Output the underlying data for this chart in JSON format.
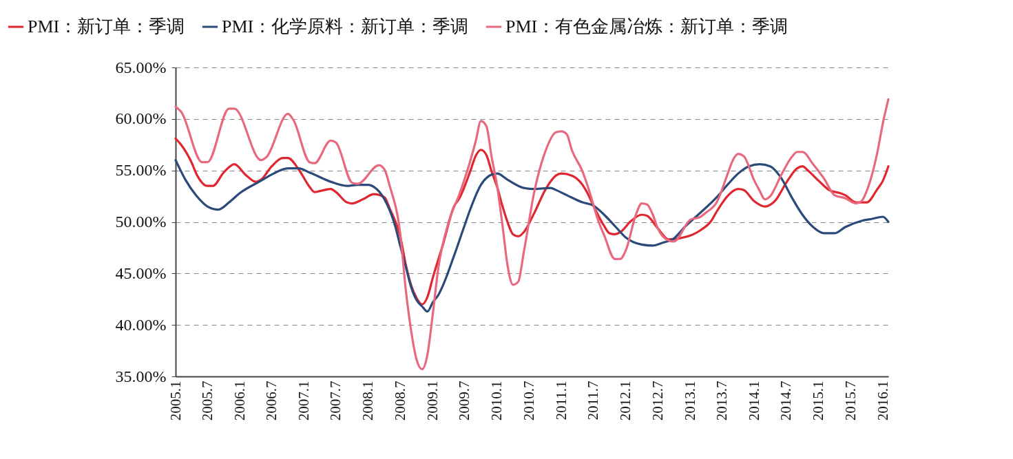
{
  "chart_data": {
    "type": "line",
    "legend": "top",
    "grid": "y",
    "line_style": "solid",
    "xlim": [
      "2005-01",
      "2016-02"
    ],
    "xticks": [
      {
        "value": "2005-01",
        "label": "2005.1"
      },
      {
        "value": "2005-07",
        "label": "2005.7"
      },
      {
        "value": "2006-01",
        "label": "2006.1"
      },
      {
        "value": "2006-07",
        "label": "2006.7"
      },
      {
        "value": "2007-01",
        "label": "2007.1"
      },
      {
        "value": "2007-07",
        "label": "2007.7"
      },
      {
        "value": "2008-01",
        "label": "2008.1"
      },
      {
        "value": "2008-07",
        "label": "2008.7"
      },
      {
        "value": "2009-01",
        "label": "2009.1"
      },
      {
        "value": "2009-07",
        "label": "2009.7"
      },
      {
        "value": "2010-01",
        "label": "2010.1"
      },
      {
        "value": "2010-07",
        "label": "2010.7"
      },
      {
        "value": "2011-01",
        "label": "2011.1"
      },
      {
        "value": "2011-07",
        "label": "2011.7"
      },
      {
        "value": "2012-01",
        "label": "2012.1"
      },
      {
        "value": "2012-07",
        "label": "2012.7"
      },
      {
        "value": "2013-01",
        "label": "2013.1"
      },
      {
        "value": "2013-07",
        "label": "2013.7"
      },
      {
        "value": "2014-01",
        "label": "2014.1"
      },
      {
        "value": "2014-07",
        "label": "2014.7"
      },
      {
        "value": "2015-01",
        "label": "2015.1"
      },
      {
        "value": "2015-07",
        "label": "2015.7"
      },
      {
        "value": "2016-01",
        "label": "2016.1"
      }
    ],
    "ylim": [
      35,
      65
    ],
    "yticks": [
      {
        "value": 35,
        "label": "35.00%"
      },
      {
        "value": 40,
        "label": "40.00%"
      },
      {
        "value": 45,
        "label": "45.00%"
      },
      {
        "value": 50,
        "label": "50.00%"
      },
      {
        "value": 55,
        "label": "55.00%"
      },
      {
        "value": 60,
        "label": "60.00%"
      },
      {
        "value": 65,
        "label": "65.00%"
      }
    ],
    "series": [
      {
        "name": "PMI：新订单：季调",
        "color": "#e0262e",
        "x": [
          "2005-01",
          "2005-02",
          "2005-04",
          "2005-05",
          "2005-07",
          "2005-08",
          "2005-10",
          "2005-12",
          "2006-02",
          "2006-04",
          "2006-05",
          "2006-07",
          "2006-09",
          "2006-10",
          "2006-12",
          "2007-02",
          "2007-03",
          "2007-04",
          "2007-06",
          "2007-07",
          "2007-09",
          "2007-10",
          "2007-12",
          "2008-02",
          "2008-04",
          "2008-05",
          "2008-07",
          "2008-08",
          "2008-09",
          "2008-10",
          "2008-11",
          "2008-12",
          "2009-01",
          "2009-03",
          "2009-05",
          "2009-06",
          "2009-08",
          "2009-09",
          "2009-10",
          "2009-11",
          "2009-12",
          "2010-01",
          "2010-02",
          "2010-03",
          "2010-04",
          "2010-05",
          "2010-06",
          "2010-08",
          "2010-10",
          "2010-12",
          "2011-01",
          "2011-03",
          "2011-05",
          "2011-06",
          "2011-07",
          "2011-09",
          "2011-10",
          "2011-11",
          "2011-12",
          "2012-02",
          "2012-04",
          "2012-05",
          "2012-07",
          "2012-09",
          "2012-11",
          "2013-02",
          "2013-03",
          "2013-05",
          "2013-06",
          "2013-07",
          "2013-08",
          "2013-10",
          "2013-11",
          "2014-01",
          "2014-03",
          "2014-05",
          "2014-07",
          "2014-09",
          "2014-10",
          "2014-11",
          "2015-01",
          "2015-03",
          "2015-05",
          "2015-06",
          "2015-08",
          "2015-10",
          "2015-12",
          "2016-01",
          "2016-02"
        ],
        "values": [
          58.1,
          57.5,
          55.8,
          54.6,
          53.5,
          53.5,
          54.8,
          55.6,
          54.6,
          53.9,
          54.1,
          55.4,
          56.2,
          56.2,
          55.1,
          53.4,
          52.9,
          53.0,
          53.2,
          52.9,
          51.9,
          51.8,
          52.2,
          52.7,
          52.4,
          51.3,
          48.5,
          45.8,
          43.8,
          42.6,
          42.0,
          42.7,
          44.6,
          47.9,
          51.5,
          52.3,
          54.9,
          56.4,
          57.0,
          56.5,
          54.9,
          53.4,
          51.5,
          50.0,
          48.8,
          48.6,
          49.0,
          50.9,
          53.1,
          54.5,
          54.7,
          54.5,
          53.6,
          52.7,
          51.6,
          49.6,
          48.9,
          48.8,
          49.0,
          50.1,
          50.7,
          50.6,
          49.4,
          48.3,
          48.4,
          48.9,
          49.2,
          50.1,
          51.0,
          51.8,
          52.5,
          53.2,
          53.1,
          52.0,
          51.5,
          52.1,
          53.8,
          55.2,
          55.4,
          55.0,
          54.0,
          53.1,
          52.8,
          52.6,
          51.9,
          51.9,
          53.2,
          54.0,
          55.4
        ]
      },
      {
        "name": "PMI：化学原料：新订单：季调",
        "color": "#2b4a7a",
        "x": [
          "2005-01",
          "2005-03",
          "2005-05",
          "2005-07",
          "2005-09",
          "2005-11",
          "2006-01",
          "2006-05",
          "2006-07",
          "2006-10",
          "2006-12",
          "2007-02",
          "2007-06",
          "2007-09",
          "2007-11",
          "2008-01",
          "2008-02",
          "2008-04",
          "2008-06",
          "2008-07",
          "2008-08",
          "2008-09",
          "2008-10",
          "2008-11",
          "2008-12",
          "2009-01",
          "2009-02",
          "2009-03",
          "2009-05",
          "2009-07",
          "2009-08",
          "2009-10",
          "2009-12",
          "2010-01",
          "2010-03",
          "2010-06",
          "2010-08",
          "2010-11",
          "2010-12",
          "2011-02",
          "2011-05",
          "2011-07",
          "2011-09",
          "2011-11",
          "2012-01",
          "2012-04",
          "2012-06",
          "2012-08",
          "2012-10",
          "2012-12",
          "2013-03",
          "2013-06",
          "2013-08",
          "2013-10",
          "2013-12",
          "2014-02",
          "2014-04",
          "2014-06",
          "2014-08",
          "2014-10",
          "2014-12",
          "2015-02",
          "2015-04",
          "2015-06",
          "2015-09",
          "2015-11",
          "2016-01",
          "2016-02"
        ],
        "values": [
          56.0,
          54.0,
          52.5,
          51.5,
          51.2,
          51.9,
          52.8,
          54.0,
          54.6,
          55.2,
          55.2,
          54.8,
          53.9,
          53.5,
          53.6,
          53.6,
          53.4,
          52.2,
          49.6,
          47.6,
          45.6,
          43.6,
          42.4,
          41.8,
          41.3,
          42.2,
          42.9,
          43.9,
          46.7,
          49.7,
          51.2,
          53.6,
          54.6,
          54.7,
          54.1,
          53.3,
          53.2,
          53.3,
          53.1,
          52.6,
          51.9,
          51.6,
          50.7,
          49.6,
          48.5,
          47.8,
          47.7,
          48.0,
          48.4,
          49.5,
          50.9,
          52.4,
          53.6,
          54.7,
          55.4,
          55.6,
          55.4,
          54.3,
          52.4,
          50.7,
          49.5,
          48.9,
          48.9,
          49.5,
          50.1,
          50.3,
          50.5,
          50.0
        ]
      },
      {
        "name": "PMI：有色金属冶炼：新订单：季调",
        "color": "#e8697f",
        "x": [
          "2005-01",
          "2005-02",
          "2005-06",
          "2005-07",
          "2005-11",
          "2005-12",
          "2006-05",
          "2006-06",
          "2006-10",
          "2006-11",
          "2007-02",
          "2007-03",
          "2007-06",
          "2007-07",
          "2007-10",
          "2007-11",
          "2008-03",
          "2008-04",
          "2008-05",
          "2008-07",
          "2008-08",
          "2008-09",
          "2008-10",
          "2008-11",
          "2008-12",
          "2009-01",
          "2009-02",
          "2009-04",
          "2009-06",
          "2009-08",
          "2009-09",
          "2009-10",
          "2009-11",
          "2009-12",
          "2010-01",
          "2010-02",
          "2010-03",
          "2010-04",
          "2010-05",
          "2010-06",
          "2010-08",
          "2010-10",
          "2010-12",
          "2011-01",
          "2011-02",
          "2011-03",
          "2011-05",
          "2011-06",
          "2011-08",
          "2011-09",
          "2011-11",
          "2011-12",
          "2012-01",
          "2012-03",
          "2012-04",
          "2012-05",
          "2012-06",
          "2012-07",
          "2012-09",
          "2012-10",
          "2013-01",
          "2013-03",
          "2013-04",
          "2013-06",
          "2013-08",
          "2013-09",
          "2013-10",
          "2013-11",
          "2014-01",
          "2014-02",
          "2014-03",
          "2014-04",
          "2014-06",
          "2014-08",
          "2014-09",
          "2014-10",
          "2014-12",
          "2015-02",
          "2015-04",
          "2015-06",
          "2015-08",
          "2015-09",
          "2015-10",
          "2015-12",
          "2016-01",
          "2016-02"
        ],
        "values": [
          61.2,
          60.7,
          55.8,
          55.8,
          61.0,
          61.0,
          56.0,
          56.3,
          60.5,
          59.9,
          55.8,
          55.7,
          57.9,
          57.7,
          53.8,
          53.7,
          55.5,
          55.1,
          53.5,
          48.7,
          43.3,
          39.3,
          36.6,
          35.7,
          37.1,
          41.1,
          45.5,
          50.0,
          52.7,
          55.9,
          57.8,
          59.8,
          59.3,
          56.3,
          53.5,
          49.6,
          45.8,
          43.9,
          44.2,
          47.0,
          53.0,
          56.8,
          58.7,
          58.8,
          58.5,
          57.0,
          54.9,
          53.4,
          50.0,
          48.7,
          46.4,
          46.4,
          47.2,
          50.8,
          51.8,
          51.7,
          50.8,
          49.4,
          48.2,
          48.1,
          50.2,
          50.5,
          50.9,
          51.9,
          54.6,
          56.0,
          56.6,
          56.4,
          54.0,
          53.0,
          52.2,
          52.5,
          54.5,
          56.3,
          56.8,
          56.8,
          55.6,
          54.2,
          52.6,
          52.3,
          51.8,
          52.0,
          53.0,
          56.8,
          59.6,
          61.9
        ]
      }
    ]
  }
}
